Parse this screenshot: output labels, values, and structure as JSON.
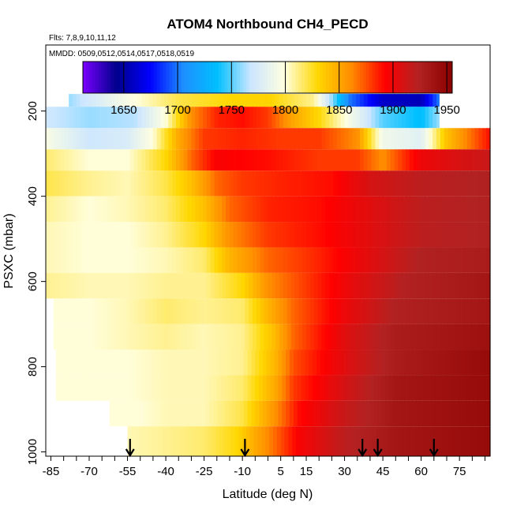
{
  "chart_data": {
    "type": "heatmap",
    "title": "ATOM4 Northbound CH4_PECD",
    "subtitle_flights": "Flts: 7,8,9,10,11,12",
    "subtitle_dates": "MMDD: 0509,0512,0514,0517,0518,0519",
    "xlabel": "Latitude (deg N)",
    "ylabel": "PSXC (mbar)",
    "x_ticks": [
      -85,
      -70,
      -55,
      -40,
      -25,
      -10,
      5,
      15,
      30,
      45,
      60,
      75
    ],
    "y_ticks": [
      200,
      400,
      600,
      800,
      1000
    ],
    "xlim": [
      -87,
      87
    ],
    "ylim": [
      1010,
      45
    ],
    "colorbar": {
      "ticks": [
        1650,
        1700,
        1750,
        1800,
        1850,
        1900,
        1950
      ],
      "range": [
        1612,
        1955
      ],
      "colors": [
        "#7a00ff",
        "#00008b",
        "#0000ff",
        "#1e90ff",
        "#00bfff",
        "#cce6ff",
        "#ffffe0",
        "#ffd700",
        "#ff8c00",
        "#ff0000",
        "#b22222",
        "#8b0000"
      ]
    },
    "flight_arrow_latitudes": [
      -54,
      -9,
      37,
      43,
      65
    ],
    "pressure_bands": [
      {
        "p": [
          160,
          190
        ],
        "lat": [
          -78,
          67
        ],
        "profile": [
          [
            -78,
            1760
          ],
          [
            -55,
            1795
          ],
          [
            -35,
            1820
          ],
          [
            -15,
            1830
          ],
          [
            0,
            1832
          ],
          [
            18,
            1810
          ],
          [
            25,
            1760
          ],
          [
            32,
            1700
          ],
          [
            45,
            1660
          ],
          [
            60,
            1655
          ],
          [
            67,
            1700
          ]
        ]
      },
      {
        "p": [
          190,
          240
        ],
        "lat": [
          -87,
          67
        ],
        "profile": [
          [
            -87,
            1770
          ],
          [
            -70,
            1760
          ],
          [
            -52,
            1765
          ],
          [
            -40,
            1800
          ],
          [
            -30,
            1860
          ],
          [
            -20,
            1885
          ],
          [
            -10,
            1890
          ],
          [
            0,
            1880
          ],
          [
            10,
            1850
          ],
          [
            20,
            1830
          ],
          [
            30,
            1800
          ],
          [
            45,
            1750
          ],
          [
            60,
            1735
          ],
          [
            67,
            1760
          ]
        ]
      },
      {
        "p": [
          240,
          290
        ],
        "lat": [
          -87,
          87
        ],
        "profile": [
          [
            -87,
            1795
          ],
          [
            -70,
            1770
          ],
          [
            -55,
            1775
          ],
          [
            -45,
            1800
          ],
          [
            -35,
            1850
          ],
          [
            -25,
            1880
          ],
          [
            -10,
            1885
          ],
          [
            5,
            1880
          ],
          [
            20,
            1880
          ],
          [
            35,
            1860
          ],
          [
            45,
            1790
          ],
          [
            60,
            1780
          ],
          [
            70,
            1840
          ],
          [
            87,
            1890
          ]
        ]
      },
      {
        "p": [
          290,
          340
        ],
        "lat": [
          -87,
          87
        ],
        "profile": [
          [
            -87,
            1815
          ],
          [
            -70,
            1800
          ],
          [
            -55,
            1800
          ],
          [
            -40,
            1830
          ],
          [
            -30,
            1870
          ],
          [
            -20,
            1895
          ],
          [
            0,
            1890
          ],
          [
            20,
            1880
          ],
          [
            35,
            1880
          ],
          [
            45,
            1860
          ],
          [
            60,
            1900
          ],
          [
            87,
            1915
          ]
        ]
      },
      {
        "p": [
          340,
          400
        ],
        "lat": [
          -87,
          87
        ],
        "profile": [
          [
            -87,
            1820
          ],
          [
            -70,
            1810
          ],
          [
            -55,
            1805
          ],
          [
            -40,
            1820
          ],
          [
            -30,
            1840
          ],
          [
            -20,
            1870
          ],
          [
            -10,
            1880
          ],
          [
            5,
            1885
          ],
          [
            25,
            1890
          ],
          [
            40,
            1910
          ],
          [
            60,
            1920
          ],
          [
            87,
            1925
          ]
        ]
      },
      {
        "p": [
          400,
          460
        ],
        "lat": [
          -87,
          87
        ],
        "profile": [
          [
            -87,
            1810
          ],
          [
            -70,
            1800
          ],
          [
            -55,
            1805
          ],
          [
            -40,
            1815
          ],
          [
            -25,
            1840
          ],
          [
            -15,
            1870
          ],
          [
            0,
            1885
          ],
          [
            20,
            1890
          ],
          [
            40,
            1905
          ],
          [
            60,
            1920
          ],
          [
            87,
            1925
          ]
        ]
      },
      {
        "p": [
          460,
          520
        ],
        "lat": [
          -87,
          87
        ],
        "profile": [
          [
            -87,
            1805
          ],
          [
            -70,
            1800
          ],
          [
            -55,
            1800
          ],
          [
            -40,
            1810
          ],
          [
            -25,
            1830
          ],
          [
            -15,
            1860
          ],
          [
            0,
            1880
          ],
          [
            20,
            1890
          ],
          [
            40,
            1905
          ],
          [
            60,
            1920
          ],
          [
            87,
            1925
          ]
        ]
      },
      {
        "p": [
          520,
          580
        ],
        "lat": [
          -87,
          87
        ],
        "profile": [
          [
            -87,
            1805
          ],
          [
            -70,
            1800
          ],
          [
            -55,
            1800
          ],
          [
            -40,
            1805
          ],
          [
            -25,
            1815
          ],
          [
            -15,
            1845
          ],
          [
            0,
            1870
          ],
          [
            20,
            1885
          ],
          [
            40,
            1905
          ],
          [
            60,
            1925
          ],
          [
            87,
            1930
          ]
        ]
      },
      {
        "p": [
          580,
          640
        ],
        "lat": [
          -87,
          87
        ],
        "profile": [
          [
            -87,
            1810
          ],
          [
            -70,
            1805
          ],
          [
            -55,
            1805
          ],
          [
            -40,
            1810
          ],
          [
            -25,
            1810
          ],
          [
            -10,
            1830
          ],
          [
            0,
            1860
          ],
          [
            15,
            1880
          ],
          [
            35,
            1905
          ],
          [
            55,
            1925
          ],
          [
            87,
            1935
          ]
        ]
      },
      {
        "p": [
          640,
          700
        ],
        "lat": [
          -84,
          87
        ],
        "profile": [
          [
            -84,
            1800
          ],
          [
            -70,
            1800
          ],
          [
            -55,
            1805
          ],
          [
            -40,
            1815
          ],
          [
            -25,
            1810
          ],
          [
            -10,
            1815
          ],
          [
            0,
            1845
          ],
          [
            10,
            1870
          ],
          [
            30,
            1900
          ],
          [
            50,
            1925
          ],
          [
            87,
            1935
          ]
        ]
      },
      {
        "p": [
          700,
          760
        ],
        "lat": [
          -84,
          87
        ],
        "profile": [
          [
            -84,
            1800
          ],
          [
            -70,
            1800
          ],
          [
            -55,
            1805
          ],
          [
            -40,
            1810
          ],
          [
            -25,
            1805
          ],
          [
            -10,
            1810
          ],
          [
            2,
            1840
          ],
          [
            10,
            1870
          ],
          [
            30,
            1905
          ],
          [
            50,
            1930
          ],
          [
            87,
            1940
          ]
        ]
      },
      {
        "p": [
          760,
          820
        ],
        "lat": [
          -83,
          87
        ],
        "profile": [
          [
            -83,
            1800
          ],
          [
            -70,
            1800
          ],
          [
            -55,
            1800
          ],
          [
            -40,
            1805
          ],
          [
            -25,
            1805
          ],
          [
            -10,
            1810
          ],
          [
            3,
            1845
          ],
          [
            10,
            1875
          ],
          [
            30,
            1905
          ],
          [
            50,
            1930
          ],
          [
            87,
            1945
          ]
        ]
      },
      {
        "p": [
          820,
          880
        ],
        "lat": [
          -83,
          87
        ],
        "profile": [
          [
            -83,
            1800
          ],
          [
            -70,
            1800
          ],
          [
            -55,
            1800
          ],
          [
            -40,
            1805
          ],
          [
            -25,
            1805
          ],
          [
            -10,
            1815
          ],
          [
            3,
            1850
          ],
          [
            10,
            1880
          ],
          [
            30,
            1910
          ],
          [
            50,
            1935
          ],
          [
            87,
            1945
          ]
        ]
      },
      {
        "p": [
          880,
          940
        ],
        "lat": [
          -62,
          87
        ],
        "profile": [
          [
            -62,
            1800
          ],
          [
            -50,
            1800
          ],
          [
            -40,
            1805
          ],
          [
            -25,
            1805
          ],
          [
            -10,
            1820
          ],
          [
            3,
            1860
          ],
          [
            12,
            1890
          ],
          [
            30,
            1915
          ],
          [
            50,
            1935
          ],
          [
            87,
            1945
          ]
        ]
      },
      {
        "p": [
          940,
          1010
        ],
        "lat": [
          -55,
          87
        ],
        "profile": [
          [
            -55,
            1805
          ],
          [
            -40,
            1810
          ],
          [
            -25,
            1815
          ],
          [
            -12,
            1830
          ],
          [
            3,
            1870
          ],
          [
            12,
            1895
          ],
          [
            30,
            1920
          ],
          [
            50,
            1935
          ],
          [
            87,
            1945
          ]
        ]
      }
    ]
  }
}
